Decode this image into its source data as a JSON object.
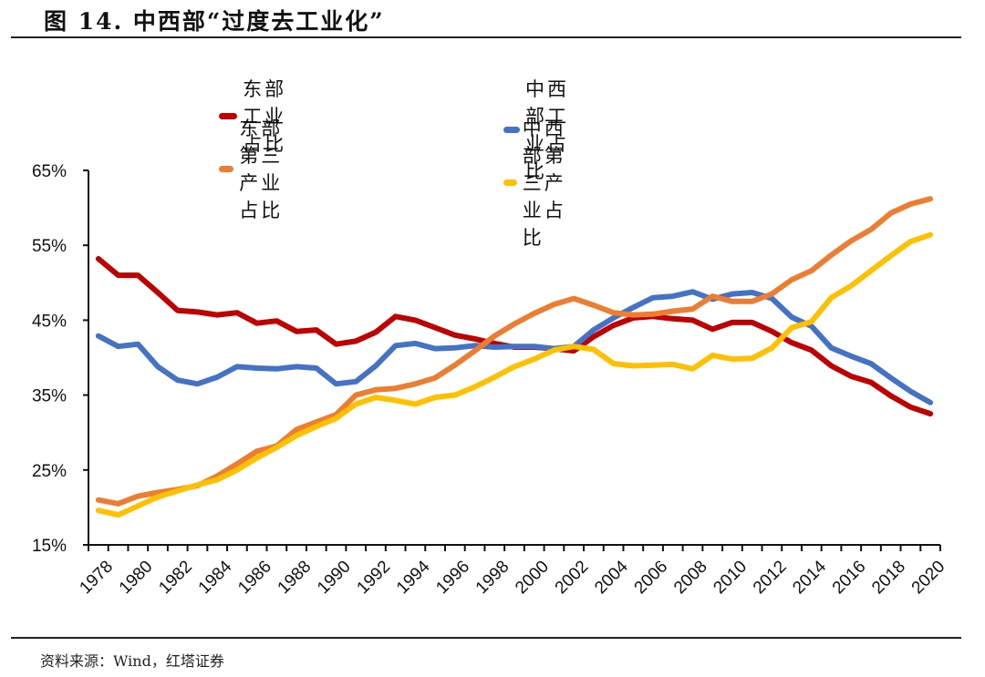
{
  "figure": {
    "title": "图 14. 中西部“过度去工业化”",
    "source": "资料来源：Wind，红塔证券"
  },
  "chart_data": {
    "type": "line",
    "title": "中西部“过度去工业化”",
    "xlabel": "",
    "ylabel": "",
    "ylim": [
      15,
      65
    ],
    "yticks": [
      15,
      25,
      35,
      45,
      55,
      65
    ],
    "ytick_labels": [
      "15%",
      "25%",
      "35%",
      "45%",
      "55%",
      "65%"
    ],
    "x": [
      1978,
      1979,
      1980,
      1981,
      1982,
      1983,
      1984,
      1985,
      1986,
      1987,
      1988,
      1989,
      1990,
      1991,
      1992,
      1993,
      1994,
      1995,
      1996,
      1997,
      1998,
      1999,
      2000,
      2001,
      2002,
      2003,
      2004,
      2005,
      2006,
      2007,
      2008,
      2009,
      2010,
      2011,
      2012,
      2013,
      2014,
      2015,
      2016,
      2017,
      2018,
      2019,
      2020
    ],
    "xtick_labels": [
      "1978",
      "1980",
      "1982",
      "1984",
      "1986",
      "1988",
      "1990",
      "1992",
      "1994",
      "1996",
      "1998",
      "2000",
      "2002",
      "2004",
      "2006",
      "2008",
      "2010",
      "2012",
      "2014",
      "2016",
      "2018",
      "2020"
    ],
    "grid": false,
    "legend_position": "top",
    "series": [
      {
        "name": "东部工业占比",
        "color": "#C00000",
        "values": [
          53.2,
          51.0,
          51.0,
          48.7,
          46.3,
          46.1,
          45.7,
          46.0,
          44.6,
          44.9,
          43.5,
          43.7,
          41.8,
          42.2,
          43.4,
          45.5,
          45.0,
          44.0,
          43.0,
          42.5,
          41.9,
          41.4,
          41.4,
          41.2,
          40.9,
          42.8,
          44.3,
          45.3,
          45.5,
          45.2,
          45.0,
          43.8,
          44.7,
          44.7,
          43.5,
          42.0,
          41.0,
          38.9,
          37.5,
          36.7,
          34.9,
          33.4,
          32.5
        ]
      },
      {
        "name": "中西部工业占比",
        "color": "#4472C4",
        "values": [
          42.9,
          41.5,
          41.8,
          38.8,
          37.0,
          36.5,
          37.4,
          38.8,
          38.6,
          38.5,
          38.8,
          38.6,
          36.5,
          36.8,
          38.9,
          41.6,
          41.9,
          41.2,
          41.3,
          41.6,
          41.4,
          41.5,
          41.5,
          41.2,
          41.5,
          43.7,
          45.3,
          46.7,
          48.0,
          48.2,
          48.8,
          47.8,
          48.5,
          48.7,
          47.9,
          45.4,
          44.2,
          41.3,
          40.2,
          39.2,
          37.3,
          35.5,
          34.0
        ]
      },
      {
        "name": "东部第三产业占比",
        "color": "#ED7D31",
        "values": [
          21.0,
          20.5,
          21.5,
          22.0,
          22.4,
          22.9,
          24.2,
          25.8,
          27.5,
          28.2,
          30.4,
          31.4,
          32.4,
          35.0,
          35.7,
          35.9,
          36.5,
          37.3,
          39.0,
          40.9,
          42.9,
          44.5,
          45.9,
          47.1,
          47.9,
          47.0,
          46.0,
          45.7,
          45.8,
          46.2,
          46.5,
          48.2,
          47.5,
          47.5,
          48.5,
          50.4,
          51.6,
          53.7,
          55.6,
          57.1,
          59.3,
          60.5,
          61.2
        ]
      },
      {
        "name": "中西部第三产业占比",
        "color": "#FFC000",
        "values": [
          19.6,
          19.0,
          20.2,
          21.4,
          22.2,
          23.0,
          23.7,
          25.0,
          26.6,
          28.0,
          29.6,
          30.8,
          31.9,
          33.8,
          34.7,
          34.3,
          33.8,
          34.7,
          35.0,
          36.1,
          37.4,
          38.8,
          39.8,
          41.0,
          41.5,
          41.1,
          39.2,
          38.9,
          39.0,
          39.1,
          38.5,
          40.3,
          39.8,
          39.9,
          41.3,
          44.0,
          44.8,
          48.0,
          49.6,
          51.6,
          53.6,
          55.5,
          56.4
        ]
      }
    ]
  }
}
